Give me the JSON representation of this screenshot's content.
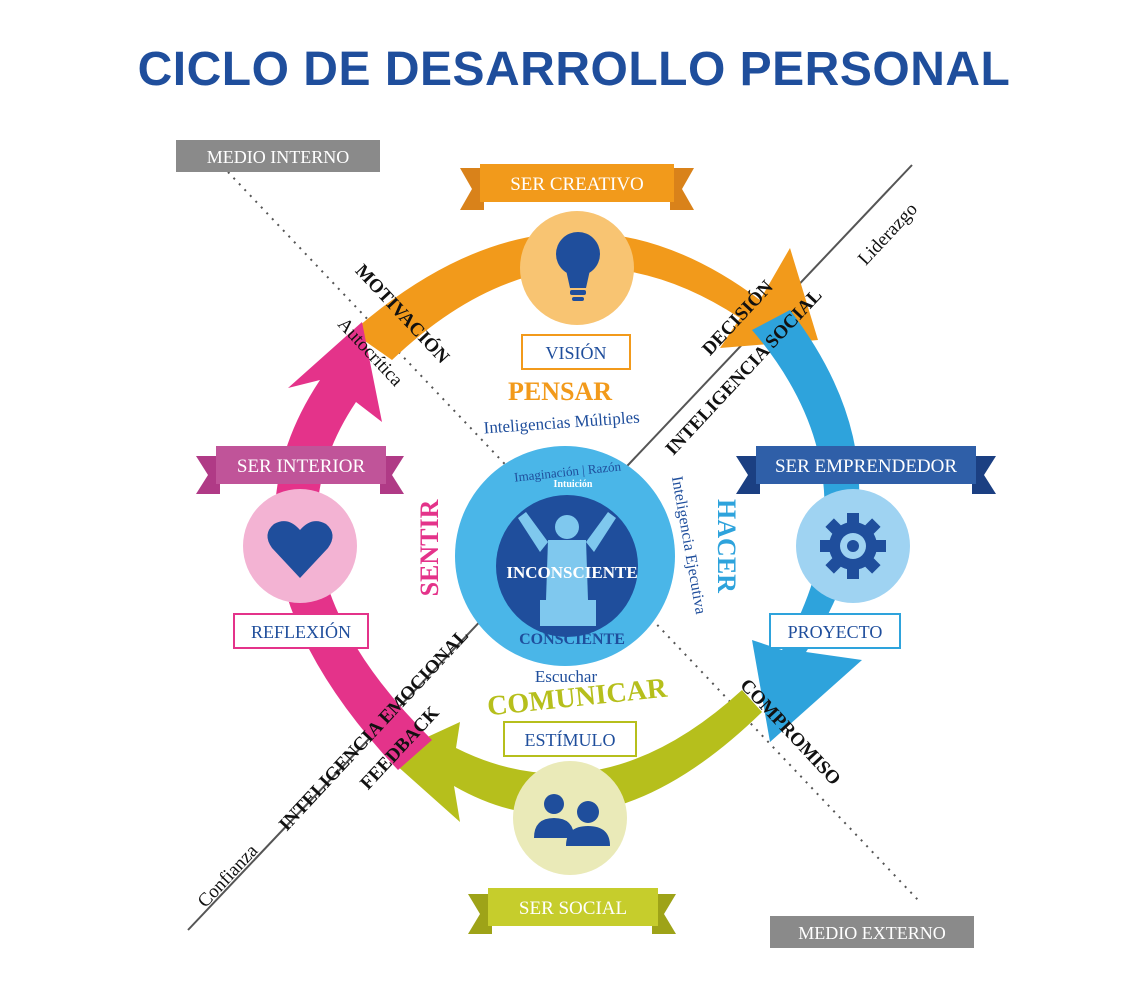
{
  "title": "CICLO DE DESARROLLO PERSONAL",
  "medio_interno": "MEDIO INTERNO",
  "medio_externo": "MEDIO EXTERNO",
  "banners": {
    "ser_creativo": "SER CREATIVO",
    "ser_emprendedor": "SER EMPRENDEDOR",
    "ser_social": "SER SOCIAL",
    "ser_interior": "SER INTERIOR"
  },
  "boxes": {
    "vision": "VISIÓN",
    "proyecto": "PROYECTO",
    "estimulo": "ESTÍMULO",
    "reflexion": "REFLEXIÓN"
  },
  "center": {
    "pensar": "PENSAR",
    "inteligencias_multiples": "Inteligencias Múltiples",
    "imaginacion_razon": "Imaginación | Razón",
    "intuicion": "Intuición",
    "inconsciente": "INCONSCIENTE",
    "consciente": "CONSCIENTE",
    "escuchar": "Escuchar",
    "comunicar": "COMUNICAR",
    "sentir": "SENTIR",
    "hacer": "HACER",
    "inteligencia_ejecutiva": "Inteligencia Ejecutiva"
  },
  "diagonals": {
    "motivacion": "MOTIVACIÓN",
    "autocritica": "Autocrítica",
    "decision": "DECISIÓN",
    "inteligencia_social": "INTELIGENCIA SOCIAL",
    "liderazgo": "Liderazgo",
    "compromiso": "COMPROMISO",
    "feedback": "FEEDBACK",
    "inteligencia_emocional": "INTELIGENCIA EMOCIONAL",
    "confianza": "Confianza"
  },
  "icons": {
    "creativo": "lightbulb-icon",
    "emprendedor": "gear-icon",
    "social": "people-icon",
    "interior": "heart-icon",
    "center": "person-raising-arms-icon"
  },
  "colors": {
    "title": "#1f4e9c",
    "orange": "#f29a1b",
    "blue": "#2ea3dc",
    "green": "#b6bf1c",
    "pink": "#e4338a",
    "navy": "#1f4e9c",
    "gray": "#8a8a8a"
  }
}
